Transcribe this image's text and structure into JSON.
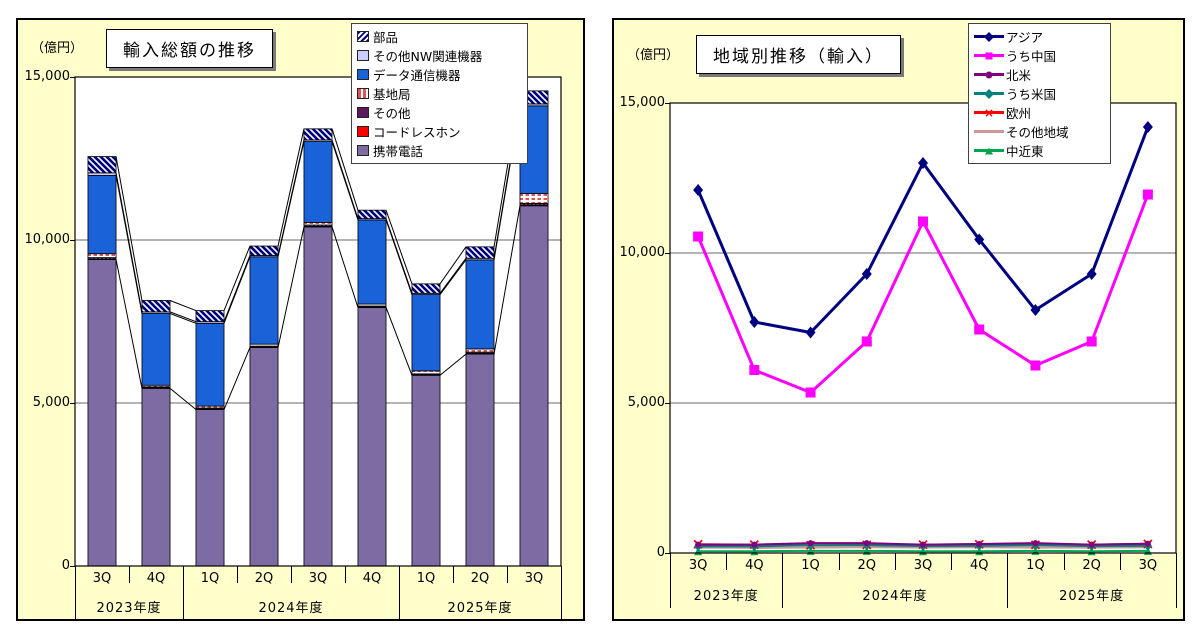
{
  "page": {
    "background": "#FFFFFF",
    "chart_area_background": "#FFFFCC",
    "plot_background": "#FFFFFF"
  },
  "chart_data": [
    {
      "type": "bar",
      "stacked": true,
      "title": "輸入総額の推移",
      "unit_label": "（億円）",
      "ylim": [
        0,
        15000
      ],
      "yticks": [
        {
          "value": 0,
          "label": "0"
        },
        {
          "value": 5000,
          "label": "5,000"
        },
        {
          "value": 10000,
          "label": "10,000"
        },
        {
          "value": 15000,
          "label": "15,000"
        }
      ],
      "grid": true,
      "legend_position": "top-right-overlay",
      "categories": [
        "3Q",
        "4Q",
        "1Q",
        "2Q",
        "3Q",
        "4Q",
        "1Q",
        "2Q",
        "3Q"
      ],
      "year_groups": [
        {
          "label": "2023年度",
          "span": 2
        },
        {
          "label": "2024年度",
          "span": 4
        },
        {
          "label": "2025年度",
          "span": 3
        }
      ],
      "series": [
        {
          "name": "携帯電話",
          "color": "#7D6BA3",
          "pattern": "solid",
          "values": [
            9400,
            5450,
            4800,
            6700,
            10400,
            7930,
            5850,
            6500,
            11050
          ]
        },
        {
          "name": "コードレスホン",
          "color": "#FF0000",
          "pattern": "solid",
          "values": [
            20,
            15,
            15,
            15,
            20,
            15,
            15,
            20,
            25
          ]
        },
        {
          "name": "その他",
          "color": "#5C1A5C",
          "pattern": "dots",
          "values": [
            40,
            30,
            30,
            30,
            40,
            30,
            30,
            40,
            50
          ]
        },
        {
          "name": "基地局",
          "color": "#DD5555",
          "pattern": "pink-dash",
          "values": [
            120,
            50,
            60,
            60,
            80,
            60,
            90,
            100,
            300
          ]
        },
        {
          "name": "データ通信機器",
          "color": "#1A62D8",
          "pattern": "solid",
          "values": [
            2400,
            2200,
            2540,
            2680,
            2480,
            2580,
            2340,
            2730,
            2690
          ]
        },
        {
          "name": "その他NW関連機器",
          "color": "#CCCCFF",
          "pattern": "solid",
          "values": [
            80,
            50,
            50,
            40,
            50,
            40,
            40,
            50,
            60
          ]
        },
        {
          "name": "部品",
          "color": "#000080",
          "pattern": "diag-hatch",
          "values": [
            500,
            350,
            340,
            290,
            340,
            260,
            290,
            350,
            400
          ]
        }
      ],
      "connector_series": [
        "携帯電話",
        "データ通信機器",
        "その他NW関連機器",
        "部品"
      ]
    },
    {
      "type": "line",
      "title": "地域別推移（輸入）",
      "unit_label": "（億円）",
      "ylim": [
        0,
        15000
      ],
      "yticks": [
        {
          "value": 0,
          "label": "0"
        },
        {
          "value": 5000,
          "label": "5,000"
        },
        {
          "value": 10000,
          "label": "10,000"
        },
        {
          "value": 15000,
          "label": "15,000"
        }
      ],
      "grid": true,
      "legend_position": "top-right-overlay",
      "categories": [
        "3Q",
        "4Q",
        "1Q",
        "2Q",
        "3Q",
        "4Q",
        "1Q",
        "2Q",
        "3Q"
      ],
      "year_groups": [
        {
          "label": "2023年度",
          "span": 2
        },
        {
          "label": "2024年度",
          "span": 4
        },
        {
          "label": "2025年度",
          "span": 3
        }
      ],
      "series": [
        {
          "name": "アジア",
          "color": "#000080",
          "marker": "diamond",
          "line_width": 3,
          "values": [
            12100,
            7700,
            7350,
            9300,
            13000,
            10450,
            8100,
            9300,
            14200
          ]
        },
        {
          "name": "うち中国",
          "color": "#FF00FF",
          "marker": "square",
          "line_width": 3,
          "values": [
            10550,
            6100,
            5350,
            7050,
            11050,
            7450,
            6250,
            7050,
            11950
          ]
        },
        {
          "name": "北米",
          "color": "#800080",
          "marker": "circle",
          "line_width": 2,
          "values": [
            280,
            280,
            330,
            330,
            280,
            300,
            330,
            280,
            310
          ]
        },
        {
          "name": "うち米国",
          "color": "#008080",
          "marker": "diamond",
          "line_width": 2,
          "values": [
            220,
            220,
            260,
            260,
            230,
            240,
            260,
            230,
            240
          ]
        },
        {
          "name": "欧州",
          "color": "#FF0000",
          "marker": "x",
          "line_width": 2,
          "values": [
            290,
            280,
            260,
            270,
            280,
            290,
            270,
            280,
            300
          ]
        },
        {
          "name": "その他地域",
          "color": "#CC9999",
          "marker": "none",
          "line_width": 2,
          "values": [
            180,
            170,
            180,
            190,
            180,
            190,
            180,
            180,
            190
          ]
        },
        {
          "name": "中近東",
          "color": "#00A550",
          "marker": "triangle",
          "line_width": 2,
          "values": [
            60,
            60,
            70,
            70,
            60,
            60,
            70,
            60,
            70
          ]
        }
      ]
    }
  ]
}
